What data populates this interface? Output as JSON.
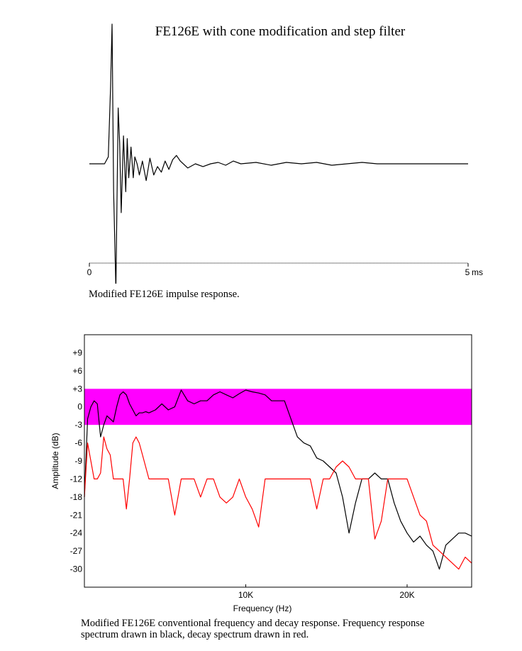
{
  "impulse": {
    "title": "FE126E with cone modification and step filter",
    "x_start_label": "0",
    "x_end_label": "5",
    "x_unit": "ms",
    "caption": "Modified FE126E impulse response."
  },
  "frequency": {
    "caption_line1": "Modified FE126E conventional frequency and decay response.  Frequency response",
    "caption_line2": "spectrum drawn in black, decay spectrum drawn in red."
  },
  "chart_data": [
    {
      "type": "line",
      "title": "FE126E with cone modification and step filter",
      "xlim": [
        0,
        5
      ],
      "x_ticks": [
        "0",
        "5"
      ],
      "x_unit": "ms",
      "series": [
        {
          "color": "#000000",
          "x": [
            0,
            0.2,
            0.25,
            0.28,
            0.3,
            0.32,
            0.35,
            0.38,
            0.4,
            0.42,
            0.45,
            0.48,
            0.5,
            0.52,
            0.55,
            0.58,
            0.6,
            0.63,
            0.66,
            0.7,
            0.75,
            0.8,
            0.85,
            0.9,
            0.95,
            1.0,
            1.05,
            1.1,
            1.15,
            1.2,
            1.3,
            1.4,
            1.5,
            1.6,
            1.7,
            1.8,
            1.9,
            2.0,
            2.2,
            2.4,
            2.6,
            2.8,
            3.0,
            3.2,
            3.4,
            3.6,
            3.8,
            4.0,
            4.5,
            5.0
          ],
          "y": [
            0,
            0,
            0.05,
            0.55,
            1.0,
            -0.2,
            -0.9,
            0.4,
            0.15,
            -0.35,
            0.2,
            -0.2,
            0.18,
            -0.1,
            0.12,
            -0.1,
            0.05,
            0.0,
            -0.08,
            0.02,
            -0.12,
            0.04,
            -0.08,
            -0.02,
            -0.06,
            0.02,
            -0.04,
            0.03,
            0.06,
            0.02,
            -0.03,
            0.0,
            -0.02,
            0.0,
            0.01,
            -0.01,
            0.02,
            0.0,
            0.01,
            -0.01,
            0.01,
            0.0,
            0.01,
            -0.01,
            0.0,
            0.01,
            0.0,
            0.0,
            0.0,
            0.0
          ]
        }
      ]
    },
    {
      "type": "line",
      "xlabel": "Frequency (Hz)",
      "ylabel": "Amplitude (dB)",
      "xlim": [
        0,
        24000
      ],
      "ylim": [
        -30,
        12
      ],
      "x_ticks": [
        "10K",
        "20K"
      ],
      "y_ticks": [
        "+9",
        "+6",
        "+3",
        "0",
        "-3",
        "-6",
        "-9",
        "-12",
        "-18",
        "-21",
        "-24",
        "-27",
        "-30"
      ],
      "band": {
        "from": -3,
        "to": 3,
        "color": "#ff00ff"
      },
      "series": [
        {
          "color": "#000000",
          "x": [
            0,
            200,
            400,
            600,
            800,
            1000,
            1200,
            1400,
            1600,
            1800,
            2000,
            2200,
            2400,
            2600,
            2800,
            3000,
            3200,
            3400,
            3600,
            3800,
            4000,
            4400,
            4800,
            5200,
            5600,
            6000,
            6400,
            6800,
            7200,
            7600,
            8000,
            8400,
            8800,
            9200,
            9600,
            10000,
            10400,
            10800,
            11200,
            11600,
            12000,
            12400,
            12800,
            13200,
            13600,
            14000,
            14400,
            14800,
            15200,
            15600,
            16000,
            16400,
            16800,
            17200,
            17600,
            18000,
            18400,
            18800,
            19200,
            19600,
            20000,
            20400,
            20800,
            21200,
            21600,
            22000,
            22400,
            22800,
            23200,
            23600,
            24000
          ],
          "y": [
            -18,
            -2,
            0,
            1,
            0.5,
            -5,
            -3,
            -1.5,
            -2,
            -2.5,
            0,
            2,
            2.5,
            2,
            0.5,
            -0.5,
            -1.5,
            -1.0,
            -1.0,
            -0.8,
            -1.0,
            -0.5,
            0.5,
            -0.5,
            0.0,
            2.8,
            1.0,
            0.5,
            1.0,
            1.0,
            2.0,
            2.5,
            2.0,
            1.5,
            2.2,
            2.8,
            2.5,
            2.3,
            2.0,
            1.0,
            1.0,
            1.0,
            -2.0,
            -5.0,
            -6.0,
            -6.5,
            -8.5,
            -9.0,
            -10.0,
            -11.0,
            -18.0,
            -24.0,
            -19.0,
            -14.0,
            -12.0,
            -11.0,
            -12.5,
            -16.0,
            -19.0,
            -22.0,
            -24.0,
            -25.5,
            -24.5,
            -26.0,
            -27.0,
            -30.0,
            -26.0,
            -25.0,
            -24.0,
            -24.0,
            -24.5
          ]
        },
        {
          "color": "#ff0000",
          "x": [
            0,
            200,
            400,
            600,
            800,
            1000,
            1200,
            1400,
            1600,
            1800,
            2000,
            2400,
            2600,
            2800,
            3000,
            3200,
            3400,
            3600,
            4000,
            4400,
            4800,
            5200,
            5600,
            6000,
            6400,
            6800,
            7200,
            7600,
            8000,
            8400,
            8800,
            9200,
            9600,
            10000,
            10400,
            10800,
            11200,
            11600,
            12000,
            12400,
            12800,
            13200,
            13600,
            14000,
            14400,
            14800,
            15200,
            15600,
            16000,
            16400,
            16800,
            17200,
            17600,
            18000,
            18400,
            18800,
            19200,
            19600,
            20000,
            20400,
            20800,
            21200,
            21600,
            22000,
            22400,
            22800,
            23200,
            23600,
            24000
          ],
          "y": [
            -18,
            -6,
            -9,
            -12,
            -13,
            -11,
            -5,
            -7,
            -8,
            -12,
            -13,
            -12,
            -20,
            -15,
            -6,
            -5,
            -6,
            -8,
            -12,
            -15,
            -13,
            -16,
            -21,
            -15,
            -12,
            -14,
            -18,
            -14,
            -13,
            -18,
            -19,
            -18,
            -14,
            -18,
            -20,
            -23,
            -16,
            -13,
            -17,
            -15,
            -15,
            -16,
            -12,
            -13,
            -20,
            -16,
            -13,
            -10,
            -9,
            -10,
            -12,
            -15,
            -17,
            -25,
            -22,
            -16,
            -13,
            -14,
            -15,
            -18,
            -21,
            -22,
            -26,
            -27,
            -28,
            -29,
            -30,
            -28,
            -29
          ]
        }
      ]
    }
  ]
}
